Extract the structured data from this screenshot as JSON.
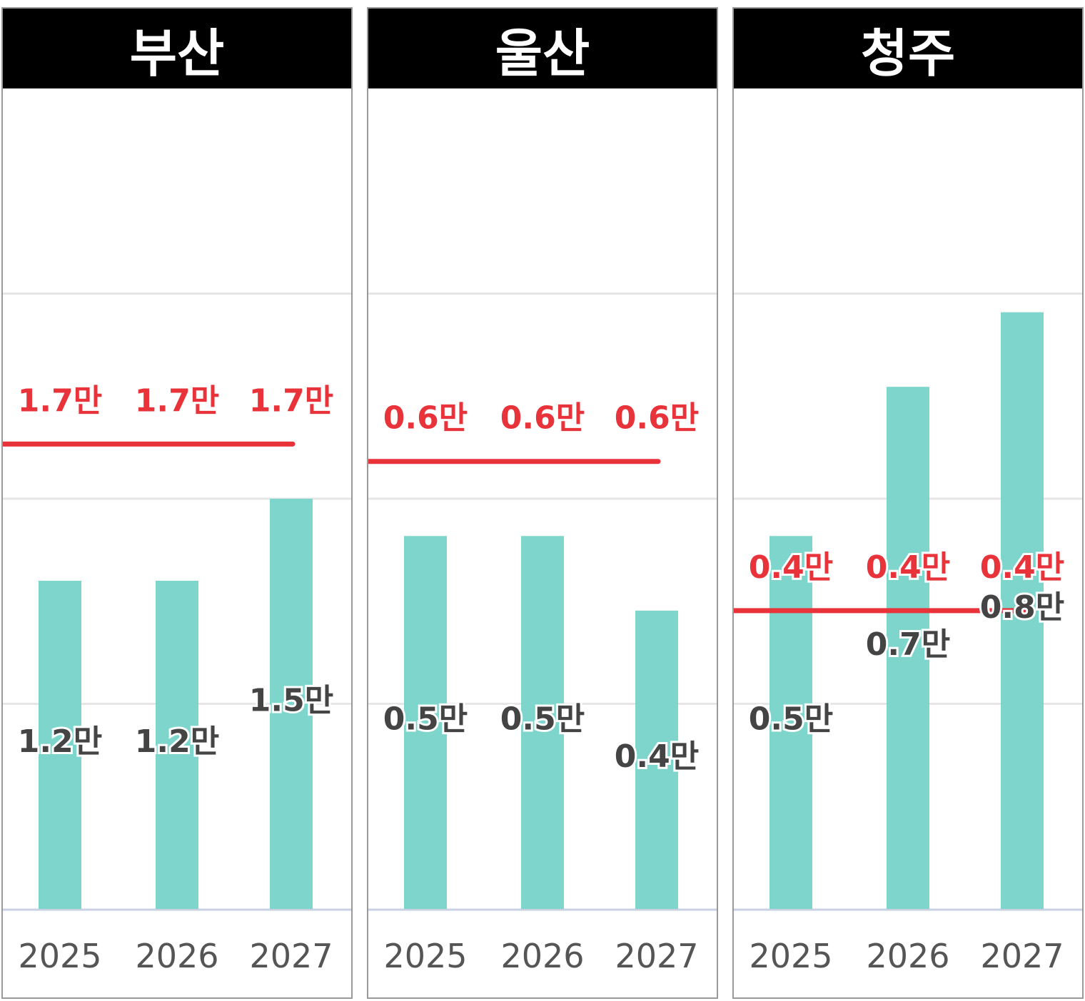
{
  "chart_data": [
    {
      "type": "bar",
      "title": "부산",
      "categories": [
        "2025",
        "2026",
        "2027"
      ],
      "series": [
        {
          "values": [
            1.2,
            1.2,
            1.5
          ],
          "labels": [
            "1.2만",
            "1.2만",
            "1.5만"
          ],
          "color": "#7dd5cb"
        }
      ],
      "reference_line": {
        "values": [
          1.7,
          1.7,
          1.7
        ],
        "labels": [
          "1.7만",
          "1.7만",
          "1.7만"
        ],
        "color": "#e8333a"
      },
      "ylim": [
        0,
        3.0
      ],
      "grid": true
    },
    {
      "type": "bar",
      "title": "울산",
      "categories": [
        "2025",
        "2026",
        "2027"
      ],
      "series": [
        {
          "values": [
            0.5,
            0.5,
            0.4
          ],
          "labels": [
            "0.5만",
            "0.5만",
            "0.4만"
          ],
          "color": "#7dd5cb"
        }
      ],
      "reference_line": {
        "values": [
          0.6,
          0.6,
          0.6
        ],
        "labels": [
          "0.6만",
          "0.6만",
          "0.6만"
        ],
        "color": "#e8333a"
      },
      "ylim": [
        0,
        1.1
      ],
      "grid": true
    },
    {
      "type": "bar",
      "title": "청주",
      "categories": [
        "2025",
        "2026",
        "2027"
      ],
      "series": [
        {
          "values": [
            0.5,
            0.7,
            0.8
          ],
          "labels": [
            "0.5만",
            "0.7만",
            "0.8만"
          ],
          "color": "#7dd5cb"
        }
      ],
      "reference_line": {
        "values": [
          0.4,
          0.4,
          0.4
        ],
        "labels": [
          "0.4만",
          "0.4만",
          "0.4만"
        ],
        "color": "#e8333a"
      },
      "ylim": [
        0,
        1.1
      ],
      "grid": true
    }
  ]
}
